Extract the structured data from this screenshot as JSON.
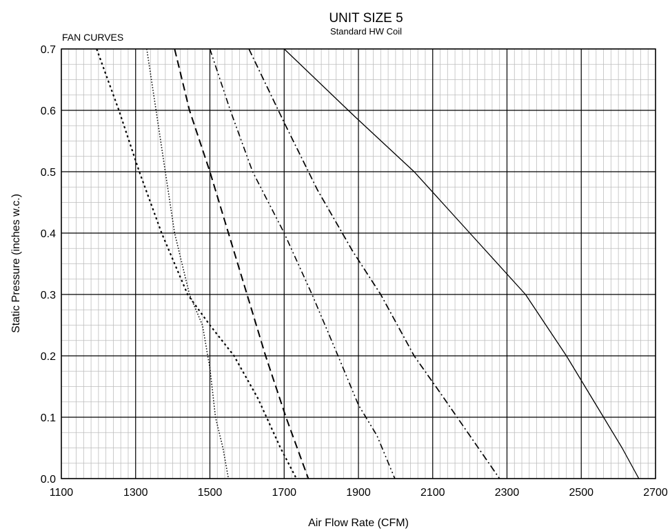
{
  "chart_data": {
    "type": "line",
    "title": "UNIT SIZE 5",
    "subtitle": "Standard HW Coil",
    "corner_label": "FAN CURVES",
    "xlabel": "Air Flow Rate (CFM)",
    "ylabel": "Static Pressure (inches w.c.)",
    "xlim": [
      1100,
      2700
    ],
    "ylim": [
      0,
      0.7
    ],
    "x_ticks": [
      "1100",
      "1300",
      "1500",
      "1700",
      "1900",
      "2100",
      "2300",
      "2500",
      "2700"
    ],
    "y_ticks": [
      "0.0",
      "0.1",
      "0.2",
      "0.3",
      "0.4",
      "0.5",
      "0.6",
      "0.7"
    ],
    "grid": true,
    "legend": "none",
    "series": [
      {
        "style": "dotted",
        "points": [
          [
            1195,
            0.7
          ],
          [
            1255,
            0.6
          ],
          [
            1310,
            0.5
          ],
          [
            1370,
            0.4
          ],
          [
            1440,
            0.3
          ],
          [
            1500,
            0.25
          ],
          [
            1565,
            0.2
          ],
          [
            1630,
            0.13
          ],
          [
            1690,
            0.05
          ],
          [
            1733,
            0.0
          ]
        ]
      },
      {
        "style": "fine-dotted",
        "points": [
          [
            1330,
            0.7
          ],
          [
            1355,
            0.6
          ],
          [
            1380,
            0.5
          ],
          [
            1405,
            0.4
          ],
          [
            1445,
            0.3
          ],
          [
            1480,
            0.25
          ],
          [
            1500,
            0.18
          ],
          [
            1515,
            0.1
          ],
          [
            1535,
            0.05
          ],
          [
            1550,
            0.0
          ]
        ]
      },
      {
        "style": "dashed",
        "points": [
          [
            1405,
            0.7
          ],
          [
            1445,
            0.6
          ],
          [
            1500,
            0.5
          ],
          [
            1550,
            0.4
          ],
          [
            1600,
            0.3
          ],
          [
            1650,
            0.2
          ],
          [
            1705,
            0.1
          ],
          [
            1735,
            0.05
          ],
          [
            1765,
            0.0
          ]
        ]
      },
      {
        "style": "dash-dot-dot",
        "points": [
          [
            1500,
            0.7
          ],
          [
            1555,
            0.6
          ],
          [
            1615,
            0.5
          ],
          [
            1700,
            0.4
          ],
          [
            1775,
            0.3
          ],
          [
            1845,
            0.2
          ],
          [
            1900,
            0.12
          ],
          [
            1950,
            0.07
          ],
          [
            1998,
            0.0
          ]
        ]
      },
      {
        "style": "dash-dot",
        "points": [
          [
            1605,
            0.7
          ],
          [
            1700,
            0.58
          ],
          [
            1790,
            0.47
          ],
          [
            1885,
            0.37
          ],
          [
            1960,
            0.3
          ],
          [
            2050,
            0.2
          ],
          [
            2120,
            0.14
          ],
          [
            2200,
            0.07
          ],
          [
            2280,
            0.0
          ]
        ]
      },
      {
        "style": "solid",
        "points": [
          [
            1700,
            0.7
          ],
          [
            1890,
            0.59
          ],
          [
            2050,
            0.5
          ],
          [
            2200,
            0.4
          ],
          [
            2350,
            0.3
          ],
          [
            2460,
            0.2
          ],
          [
            2560,
            0.1
          ],
          [
            2610,
            0.05
          ],
          [
            2655,
            0.0
          ]
        ]
      }
    ]
  }
}
